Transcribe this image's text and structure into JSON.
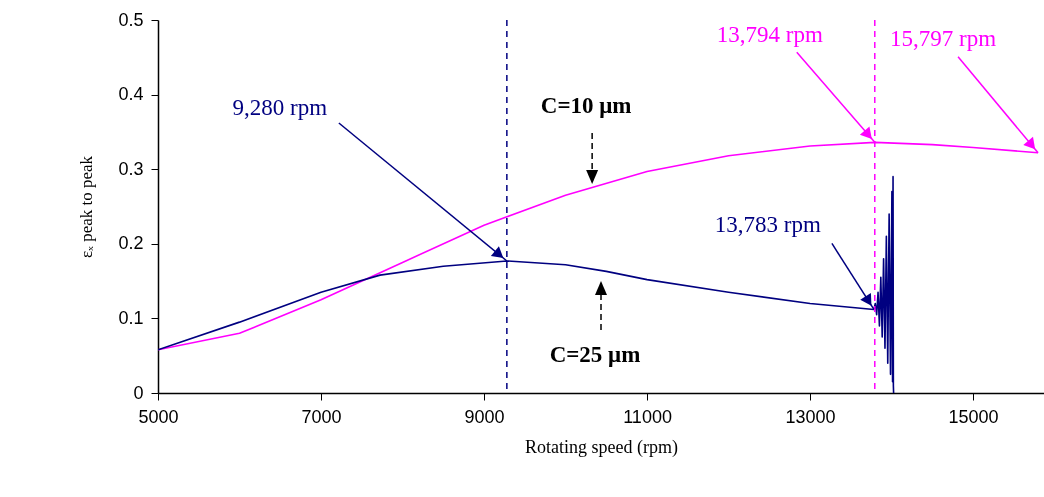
{
  "chart_data": {
    "type": "line",
    "xlabel": "Rotating speed (rpm)",
    "ylabel": "εₓ peak to peak",
    "xlim": [
      5000,
      15870
    ],
    "xticks": [
      5000,
      7000,
      9000,
      11000,
      13000,
      15000
    ],
    "ylim": [
      0,
      0.5
    ],
    "yticks": [
      0,
      0.1,
      0.2,
      0.3,
      0.4,
      0.5
    ],
    "grid": false,
    "marker": "none",
    "line_style": "solid",
    "series": [
      {
        "name": "C=10 μm",
        "color": "#ff00ff",
        "x": [
          5000,
          6000,
          7000,
          8000,
          9000,
          10000,
          11000,
          12000,
          13000,
          13794,
          14500,
          15000,
          15797
        ],
        "values": [
          0.058,
          0.08,
          0.125,
          0.175,
          0.225,
          0.265,
          0.297,
          0.318,
          0.331,
          0.336,
          0.333,
          0.329,
          0.322
        ]
      },
      {
        "name": "C=25 μm",
        "color": "#000080",
        "x": [
          5000,
          6000,
          7000,
          7724,
          8500,
          9280,
          10000,
          10500,
          11000,
          12000,
          13000,
          13783,
          13800,
          13817,
          13834,
          13851,
          13868,
          13885,
          13902,
          13919,
          13936,
          13953,
          13970,
          13987,
          14004,
          14012,
          14018,
          14022,
          14025
        ],
        "values": [
          0.058,
          0.095,
          0.135,
          0.158,
          0.17,
          0.177,
          0.172,
          0.163,
          0.152,
          0.135,
          0.12,
          0.112,
          0.12,
          0.105,
          0.135,
          0.09,
          0.155,
          0.075,
          0.18,
          0.06,
          0.21,
          0.04,
          0.24,
          0.025,
          0.27,
          0.015,
          0.29,
          0.01,
          0
        ]
      }
    ],
    "ref_lines": [
      {
        "axis": "x",
        "value": 9280,
        "color": "#000080",
        "line_style": "dashed"
      },
      {
        "axis": "x",
        "value": 13794,
        "color": "#ff00ff",
        "line_style": "dashed"
      }
    ],
    "annotations": [
      {
        "text": "9,280 rpm",
        "x": 9280,
        "y": 0.177
      },
      {
        "text": "13,794 rpm",
        "x": 13794,
        "y": 0.336
      },
      {
        "text": "15,797 rpm",
        "x": 15797,
        "y": 0.322
      },
      {
        "text": "13,783 rpm",
        "x": 13783,
        "y": 0.112
      }
    ]
  }
}
